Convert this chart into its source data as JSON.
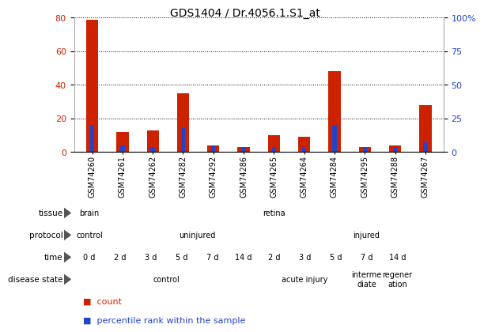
{
  "title": "GDS1404 / Dr.4056.1.S1_at",
  "samples": [
    "GSM74260",
    "GSM74261",
    "GSM74262",
    "GSM74282",
    "GSM74292",
    "GSM74286",
    "GSM74265",
    "GSM74264",
    "GSM74284",
    "GSM74295",
    "GSM74288",
    "GSM74267"
  ],
  "red_values": [
    79,
    12,
    13,
    35,
    4,
    3,
    10,
    9,
    48,
    3,
    4,
    28
  ],
  "blue_values": [
    20,
    5,
    4,
    18,
    5,
    4,
    4,
    3,
    20,
    4,
    4,
    7
  ],
  "left_ylim": [
    0,
    80
  ],
  "right_ylim": [
    0,
    100
  ],
  "left_yticks": [
    0,
    20,
    40,
    60,
    80
  ],
  "right_yticks": [
    0,
    25,
    50,
    75,
    100
  ],
  "right_yticklabels": [
    "0",
    "25",
    "50",
    "75",
    "100%"
  ],
  "tissue_row": {
    "label": "tissue",
    "segments": [
      {
        "text": "brain",
        "start": 0,
        "end": 1,
        "color": "#90ee90"
      },
      {
        "text": "retina",
        "start": 1,
        "end": 12,
        "color": "#66cc66"
      }
    ]
  },
  "protocol_row": {
    "label": "protocol",
    "segments": [
      {
        "text": "control",
        "start": 0,
        "end": 1,
        "color": "#d0e8ff"
      },
      {
        "text": "uninjured",
        "start": 1,
        "end": 7,
        "color": "#aab8e8"
      },
      {
        "text": "injured",
        "start": 7,
        "end": 12,
        "color": "#8899cc"
      }
    ]
  },
  "time_row": {
    "label": "time",
    "cells": [
      {
        "text": "0 d",
        "start": 0,
        "end": 1,
        "color": "#ffccee"
      },
      {
        "text": "2 d",
        "start": 1,
        "end": 2,
        "color": "#ffaacc"
      },
      {
        "text": "3 d",
        "start": 2,
        "end": 3,
        "color": "#ff99cc"
      },
      {
        "text": "5 d",
        "start": 3,
        "end": 4,
        "color": "#ff77bb"
      },
      {
        "text": "7 d",
        "start": 4,
        "end": 5,
        "color": "#ee55bb"
      },
      {
        "text": "14 d",
        "start": 5,
        "end": 6,
        "color": "#dd44aa"
      },
      {
        "text": "2 d",
        "start": 6,
        "end": 7,
        "color": "#ffaacc"
      },
      {
        "text": "3 d",
        "start": 7,
        "end": 8,
        "color": "#ff99cc"
      },
      {
        "text": "5 d",
        "start": 8,
        "end": 9,
        "color": "#ff77bb"
      },
      {
        "text": "7 d",
        "start": 9,
        "end": 10,
        "color": "#ee55bb"
      },
      {
        "text": "14 d",
        "start": 10,
        "end": 11,
        "color": "#dd44aa"
      }
    ]
  },
  "disease_row": {
    "label": "disease state",
    "segments": [
      {
        "text": "control",
        "start": 0,
        "end": 6,
        "color": "#f5e6ca"
      },
      {
        "text": "acute injury",
        "start": 6,
        "end": 9,
        "color": "#e8c890"
      },
      {
        "text": "interme\ndiate",
        "start": 9,
        "end": 10,
        "color": "#d4a030"
      },
      {
        "text": "regener\nation",
        "start": 10,
        "end": 11,
        "color": "#c07820"
      }
    ]
  },
  "bar_width": 0.4,
  "red_color": "#cc2200",
  "blue_color": "#2244cc",
  "grid_color": "#000000",
  "bg_color": "#ffffff"
}
